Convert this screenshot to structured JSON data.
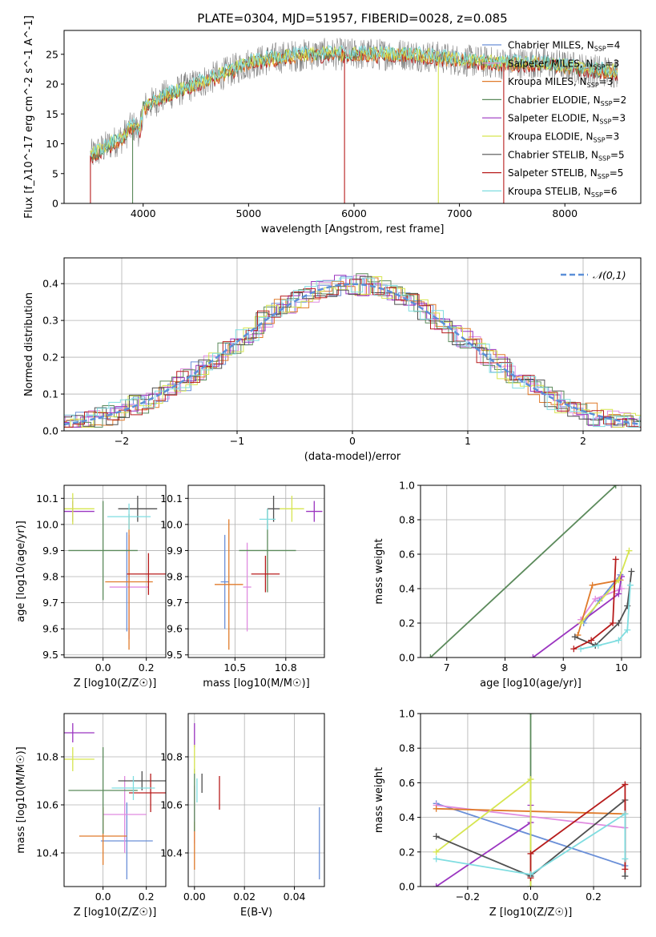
{
  "title": "PLATE=0304, MJD=51957, FIBERID=0028, z=0.085",
  "colors": {
    "chabrier_miles": "#6a8fd8",
    "salpeter_miles": "#e08be0",
    "kroupa_miles": "#e07b2b",
    "chabrier_elodie": "#5b8a5b",
    "salpeter_elodie": "#9b35c0",
    "kroupa_elodie": "#d6e54f",
    "chabrier_stelib": "#505050",
    "salpeter_stelib": "#b71c1c",
    "kroupa_stelib": "#7fdde0",
    "gaussian": "#5b8fd8",
    "grid": "#b0b0b0",
    "data": "#808080"
  },
  "chart_data": [
    {
      "id": "spectrum",
      "type": "line",
      "title": "PLATE=0304, MJD=51957, FIBERID=0028, z=0.085",
      "xlabel": "wavelength [Angstrom, rest frame]",
      "ylabel": "Flux [f_λ10^-17 erg cm^-2 s^-1 A^-1]",
      "xlim": [
        3250,
        8720
      ],
      "ylim": [
        0,
        29
      ],
      "xticks": [
        4000,
        5000,
        6000,
        7000,
        8000
      ],
      "yticks": [
        0,
        5,
        10,
        15,
        20,
        25
      ],
      "grid": false,
      "legend_position": "top-right",
      "legend": [
        {
          "key": "chabrier_miles",
          "label": "Chabrier MILES, N",
          "sub": "SSP",
          "tail": "=4"
        },
        {
          "key": "salpeter_miles",
          "label": "Salpeter MILES, N",
          "sub": "SSP",
          "tail": "=3"
        },
        {
          "key": "kroupa_miles",
          "label": "Kroupa MILES, N",
          "sub": "SSP",
          "tail": "=3"
        },
        {
          "key": "chabrier_elodie",
          "label": "Chabrier ELODIE, N",
          "sub": "SSP",
          "tail": "=2"
        },
        {
          "key": "salpeter_elodie",
          "label": "Salpeter ELODIE, N",
          "sub": "SSP",
          "tail": "=3"
        },
        {
          "key": "kroupa_elodie",
          "label": "Kroupa ELODIE, N",
          "sub": "SSP",
          "tail": "=3"
        },
        {
          "key": "chabrier_stelib",
          "label": "Chabrier STELIB, N",
          "sub": "SSP",
          "tail": "=5"
        },
        {
          "key": "salpeter_stelib",
          "label": "Salpeter STELIB, N",
          "sub": "SSP",
          "tail": "=5"
        },
        {
          "key": "kroupa_stelib",
          "label": "Kroupa STELIB, N",
          "sub": "SSP",
          "tail": "=6"
        }
      ],
      "continuum": [
        [
          3500,
          8
        ],
        [
          3600,
          9
        ],
        [
          3700,
          10
        ],
        [
          3800,
          11
        ],
        [
          3900,
          13
        ],
        [
          3970,
          12
        ],
        [
          4000,
          16
        ],
        [
          4200,
          18
        ],
        [
          4500,
          20
        ],
        [
          4800,
          22
        ],
        [
          5000,
          23.5
        ],
        [
          5300,
          24.5
        ],
        [
          5600,
          25
        ],
        [
          5900,
          25
        ],
        [
          6200,
          25
        ],
        [
          6500,
          25
        ],
        [
          6800,
          24.5
        ],
        [
          7000,
          24
        ],
        [
          7400,
          23.5
        ],
        [
          7800,
          23.5
        ],
        [
          8200,
          22.5
        ],
        [
          8500,
          22
        ]
      ]
    },
    {
      "id": "residuals",
      "type": "line",
      "xlabel": "(data-model)/error",
      "ylabel": "Normed distribution",
      "xlim": [
        -2.5,
        2.5
      ],
      "ylim": [
        0,
        0.47
      ],
      "xticks": [
        -2,
        -1,
        0,
        1,
        2
      ],
      "yticks": [
        0.0,
        0.1,
        0.2,
        0.3,
        0.4
      ],
      "grid": true,
      "legend_position": "top-right",
      "legend_label": "𝒩(0,1)",
      "gaussian": {
        "mu": 0,
        "sigma": 1
      }
    },
    {
      "id": "age_vs_Z",
      "type": "scatter",
      "xlabel": "Z [log10(Z/Z☉)]",
      "ylabel": "age  [log10(age/yr)]",
      "xlim": [
        -0.18,
        0.29
      ],
      "ylim": [
        9.49,
        10.15
      ],
      "xticks": [
        0.0,
        0.2
      ],
      "yticks": [
        9.5,
        9.6,
        9.7,
        9.8,
        9.9,
        10.0,
        10.1
      ],
      "grid": true,
      "points": [
        {
          "c": "chabrier_miles",
          "x": 0.11,
          "xe": 0.0,
          "y": 9.78,
          "ye": 0.19
        },
        {
          "c": "salpeter_miles",
          "x": 0.12,
          "xe": 0.09,
          "y": 9.76,
          "ye": 0.2
        },
        {
          "c": "kroupa_miles",
          "x": 0.12,
          "xe": 0.11,
          "y": 9.78,
          "ye": 0.26
        },
        {
          "c": "chabrier_elodie",
          "x": 0.0,
          "xe": 0.16,
          "y": 9.9,
          "ye": 0.19
        },
        {
          "c": "salpeter_elodie",
          "x": -0.14,
          "xe": 0.1,
          "y": 10.05,
          "ye": 0.04
        },
        {
          "c": "kroupa_elodie",
          "x": -0.14,
          "xe": 0.1,
          "y": 10.06,
          "ye": 0.06
        },
        {
          "c": "chabrier_stelib",
          "x": 0.16,
          "xe": 0.09,
          "y": 10.06,
          "ye": 0.05
        },
        {
          "c": "salpeter_stelib",
          "x": 0.21,
          "xe": 0.1,
          "y": 9.81,
          "ye": 0.08
        },
        {
          "c": "kroupa_stelib",
          "x": 0.12,
          "xe": 0.1,
          "y": 10.03,
          "ye": 0.05
        }
      ]
    },
    {
      "id": "age_vs_mass",
      "type": "scatter",
      "xlabel": "mass [log10(M/M☉)]",
      "ylabel": "",
      "xlim": [
        10.27,
        10.94
      ],
      "ylim": [
        9.49,
        10.15
      ],
      "xticks": [
        10.5,
        10.75
      ],
      "yticks": [
        9.5,
        9.6,
        9.7,
        9.8,
        9.9,
        10.0,
        10.1
      ],
      "grid": true,
      "points": [
        {
          "c": "chabrier_miles",
          "x": 10.45,
          "xe": 0.02,
          "y": 9.78,
          "ye": 0.18
        },
        {
          "c": "salpeter_miles",
          "x": 10.56,
          "xe": 0.02,
          "y": 9.76,
          "ye": 0.17
        },
        {
          "c": "kroupa_miles",
          "x": 10.47,
          "xe": 0.07,
          "y": 9.77,
          "ye": 0.25
        },
        {
          "c": "chabrier_elodie",
          "x": 10.66,
          "xe": 0.14,
          "y": 9.9,
          "ye": 0.16
        },
        {
          "c": "salpeter_elodie",
          "x": 10.89,
          "xe": 0.04,
          "y": 10.05,
          "ye": 0.04
        },
        {
          "c": "kroupa_elodie",
          "x": 10.78,
          "xe": 0.06,
          "y": 10.06,
          "ye": 0.05
        },
        {
          "c": "chabrier_stelib",
          "x": 10.69,
          "xe": 0.03,
          "y": 10.06,
          "ye": 0.05
        },
        {
          "c": "salpeter_stelib",
          "x": 10.65,
          "xe": 0.07,
          "y": 9.81,
          "ye": 0.07
        },
        {
          "c": "kroupa_stelib",
          "x": 10.66,
          "xe": 0.04,
          "y": 10.02,
          "ye": 0.04
        }
      ]
    },
    {
      "id": "mass_weight_vs_age",
      "type": "line",
      "xlabel": "age  [log10(age/yr)]",
      "ylabel": "mass weight",
      "xlim": [
        6.55,
        10.33
      ],
      "ylim": [
        0,
        1
      ],
      "xticks": [
        7,
        8,
        9,
        10
      ],
      "yticks": [
        0.0,
        0.2,
        0.4,
        0.6,
        0.8,
        1.0
      ],
      "grid": true,
      "series": [
        {
          "c": "chabrier_miles",
          "pts": [
            [
              9.35,
              0.2
            ],
            [
              9.62,
              0.33
            ],
            [
              9.98,
              0.48
            ]
          ]
        },
        {
          "c": "salpeter_miles",
          "pts": [
            [
              9.3,
              0.22
            ],
            [
              9.55,
              0.34
            ],
            [
              10.0,
              0.4
            ]
          ]
        },
        {
          "c": "kroupa_miles",
          "pts": [
            [
              9.25,
              0.13
            ],
            [
              9.5,
              0.42
            ],
            [
              9.98,
              0.45
            ]
          ]
        },
        {
          "c": "chabrier_elodie",
          "pts": [
            [
              6.72,
              0.0
            ],
            [
              9.9,
              1.0
            ]
          ]
        },
        {
          "c": "salpeter_elodie",
          "pts": [
            [
              8.48,
              0.0
            ],
            [
              9.95,
              0.37
            ],
            [
              10.0,
              0.47
            ]
          ]
        },
        {
          "c": "kroupa_elodie",
          "pts": [
            [
              9.3,
              0.2
            ],
            [
              9.95,
              0.45
            ],
            [
              10.13,
              0.62
            ]
          ]
        },
        {
          "c": "chabrier_stelib",
          "pts": [
            [
              9.2,
              0.12
            ],
            [
              9.55,
              0.07
            ],
            [
              9.95,
              0.2
            ],
            [
              10.1,
              0.3
            ],
            [
              10.17,
              0.5
            ]
          ]
        },
        {
          "c": "salpeter_stelib",
          "pts": [
            [
              9.18,
              0.05
            ],
            [
              9.48,
              0.1
            ],
            [
              9.85,
              0.2
            ],
            [
              9.9,
              0.57
            ]
          ]
        },
        {
          "c": "kroupa_stelib",
          "pts": [
            [
              9.3,
              0.05
            ],
            [
              9.6,
              0.07
            ],
            [
              9.95,
              0.1
            ],
            [
              10.1,
              0.16
            ],
            [
              10.15,
              0.42
            ]
          ]
        }
      ]
    },
    {
      "id": "mass_vs_Z",
      "type": "scatter",
      "xlabel": "Z [log10(Z/Z☉)]",
      "ylabel": "mass [log10(M/M☉)]",
      "xlim": [
        -0.18,
        0.29
      ],
      "ylim": [
        10.26,
        10.98
      ],
      "xticks": [
        0.0,
        0.2
      ],
      "yticks": [
        10.4,
        10.6,
        10.8
      ],
      "grid": true,
      "points": [
        {
          "c": "chabrier_miles",
          "x": 0.11,
          "xe": 0.12,
          "y": 10.45,
          "ye": 0.16
        },
        {
          "c": "salpeter_miles",
          "x": 0.1,
          "xe": 0.1,
          "y": 10.56,
          "ye": 0.16
        },
        {
          "c": "kroupa_miles",
          "x": 0.0,
          "xe": 0.11,
          "y": 10.47,
          "ye": 0.12
        },
        {
          "c": "chabrier_elodie",
          "x": 0.0,
          "xe": 0.16,
          "y": 10.66,
          "ye": 0.18
        },
        {
          "c": "salpeter_elodie",
          "x": -0.14,
          "xe": 0.1,
          "y": 10.9,
          "ye": 0.04
        },
        {
          "c": "kroupa_elodie",
          "x": -0.14,
          "xe": 0.1,
          "y": 10.79,
          "ye": 0.05
        },
        {
          "c": "chabrier_stelib",
          "x": 0.18,
          "xe": 0.11,
          "y": 10.7,
          "ye": 0.04
        },
        {
          "c": "salpeter_stelib",
          "x": 0.22,
          "xe": 0.1,
          "y": 10.65,
          "ye": 0.08
        },
        {
          "c": "kroupa_stelib",
          "x": 0.14,
          "xe": 0.1,
          "y": 10.67,
          "ye": 0.05
        }
      ]
    },
    {
      "id": "mass_vs_EBV",
      "type": "scatter",
      "xlabel": "E(B-V)",
      "ylabel": "",
      "xlim": [
        -0.0025,
        0.052
      ],
      "ylim": [
        10.26,
        10.98
      ],
      "xticks": [
        0.0,
        0.02,
        0.04
      ],
      "yticks": [
        10.4,
        10.6,
        10.8
      ],
      "grid": true,
      "points": [
        {
          "c": "chabrier_miles",
          "x": 0.05,
          "xe": 0,
          "y": 10.44,
          "ye": 0.15
        },
        {
          "c": "salpeter_miles",
          "x": 0.0,
          "xe": 0,
          "y": 10.56,
          "ye": 0.12
        },
        {
          "c": "kroupa_miles",
          "x": 0.0,
          "xe": 0,
          "y": 10.43,
          "ye": 0.1
        },
        {
          "c": "chabrier_elodie",
          "x": 0.0,
          "xe": 0,
          "y": 10.62,
          "ye": 0.13
        },
        {
          "c": "salpeter_elodie",
          "x": 0.0,
          "xe": 0,
          "y": 10.89,
          "ye": 0.05
        },
        {
          "c": "kroupa_elodie",
          "x": 0.0,
          "xe": 0,
          "y": 10.79,
          "ye": 0.06
        },
        {
          "c": "chabrier_stelib",
          "x": 0.003,
          "xe": 0,
          "y": 10.69,
          "ye": 0.04
        },
        {
          "c": "salpeter_stelib",
          "x": 0.01,
          "xe": 0,
          "y": 10.65,
          "ye": 0.07
        },
        {
          "c": "kroupa_stelib",
          "x": 0.001,
          "xe": 0,
          "y": 10.66,
          "ye": 0.05
        }
      ]
    },
    {
      "id": "mass_weight_vs_Z",
      "type": "line",
      "xlabel": "Z [log10(Z/Z☉)]",
      "ylabel": "mass weight",
      "xlim": [
        -0.35,
        0.35
      ],
      "ylim": [
        0,
        1
      ],
      "xticks": [
        -0.2,
        0.0,
        0.2
      ],
      "yticks": [
        0.0,
        0.2,
        0.4,
        0.6,
        0.8,
        1.0
      ],
      "grid": true,
      "series": [
        {
          "c": "chabrier_miles",
          "pts": [
            [
              -0.3,
              0.48
            ],
            [
              0.3,
              0.12
            ]
          ]
        },
        {
          "c": "salpeter_miles",
          "pts": [
            [
              -0.3,
              0.47
            ],
            [
              0.3,
              0.34
            ]
          ]
        },
        {
          "c": "kroupa_miles",
          "pts": [
            [
              -0.3,
              0.45
            ],
            [
              0.3,
              0.42
            ]
          ]
        },
        {
          "c": "chabrier_elodie",
          "pts": [
            [
              0.0,
              0.0
            ],
            [
              0.0,
              1.0
            ]
          ]
        },
        {
          "c": "salpeter_elodie",
          "pts": [
            [
              -0.3,
              0.0
            ],
            [
              0.0,
              0.37
            ],
            [
              0.0,
              0.47
            ]
          ]
        },
        {
          "c": "kroupa_elodie",
          "pts": [
            [
              -0.3,
              0.2
            ],
            [
              0.0,
              0.62
            ],
            [
              0.0,
              0.0
            ]
          ]
        },
        {
          "c": "chabrier_stelib",
          "pts": [
            [
              -0.3,
              0.29
            ],
            [
              0.0,
              0.06
            ],
            [
              0.3,
              0.5
            ],
            [
              0.3,
              0.06
            ]
          ]
        },
        {
          "c": "salpeter_stelib",
          "pts": [
            [
              0.0,
              0.05
            ],
            [
              0.0,
              0.19
            ],
            [
              0.3,
              0.59
            ],
            [
              0.3,
              0.1
            ]
          ]
        },
        {
          "c": "kroupa_stelib",
          "pts": [
            [
              -0.3,
              0.16
            ],
            [
              0.0,
              0.07
            ],
            [
              0.3,
              0.42
            ],
            [
              0.3,
              0.16
            ]
          ]
        }
      ]
    }
  ]
}
